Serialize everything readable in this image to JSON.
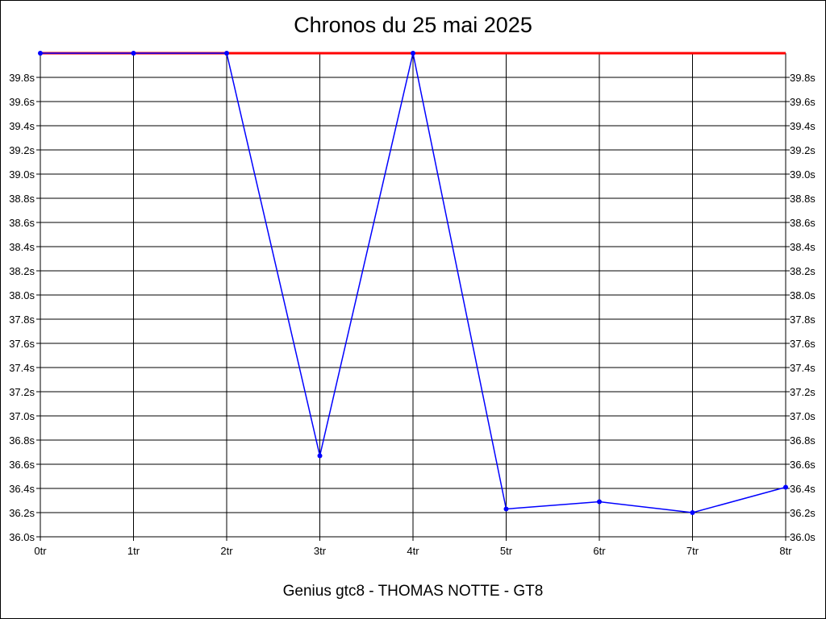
{
  "chart_data": {
    "type": "line",
    "title": "Chronos du 25 mai 2025",
    "subtitle": "Genius gtc8 - THOMAS NOTTE - GT8",
    "categories": [
      "0tr",
      "1tr",
      "2tr",
      "3tr",
      "4tr",
      "5tr",
      "6tr",
      "7tr",
      "8tr"
    ],
    "x_tick_labels": [
      "0tr",
      "1tr",
      "2tr",
      "3tr",
      "4tr",
      "5tr",
      "6tr",
      "7tr",
      "8tr"
    ],
    "y_tick_labels": [
      "36.0s",
      "36.2s",
      "36.4s",
      "36.6s",
      "36.8s",
      "37.0s",
      "37.2s",
      "37.4s",
      "37.6s",
      "37.8s",
      "38.0s",
      "38.2s",
      "38.4s",
      "38.6s",
      "38.8s",
      "39.0s",
      "39.2s",
      "39.4s",
      "39.6s",
      "39.8s"
    ],
    "ylim": [
      36.0,
      40.0
    ],
    "series": [
      {
        "values": [
          40.0,
          40.0,
          40.0,
          36.67,
          40.0,
          36.23,
          36.29,
          36.2,
          36.41
        ],
        "color": "#0000ff"
      }
    ],
    "reference_line": {
      "value": 40.0,
      "color": "#ff0000"
    },
    "grid": true,
    "y_axis_both_sides": true
  }
}
